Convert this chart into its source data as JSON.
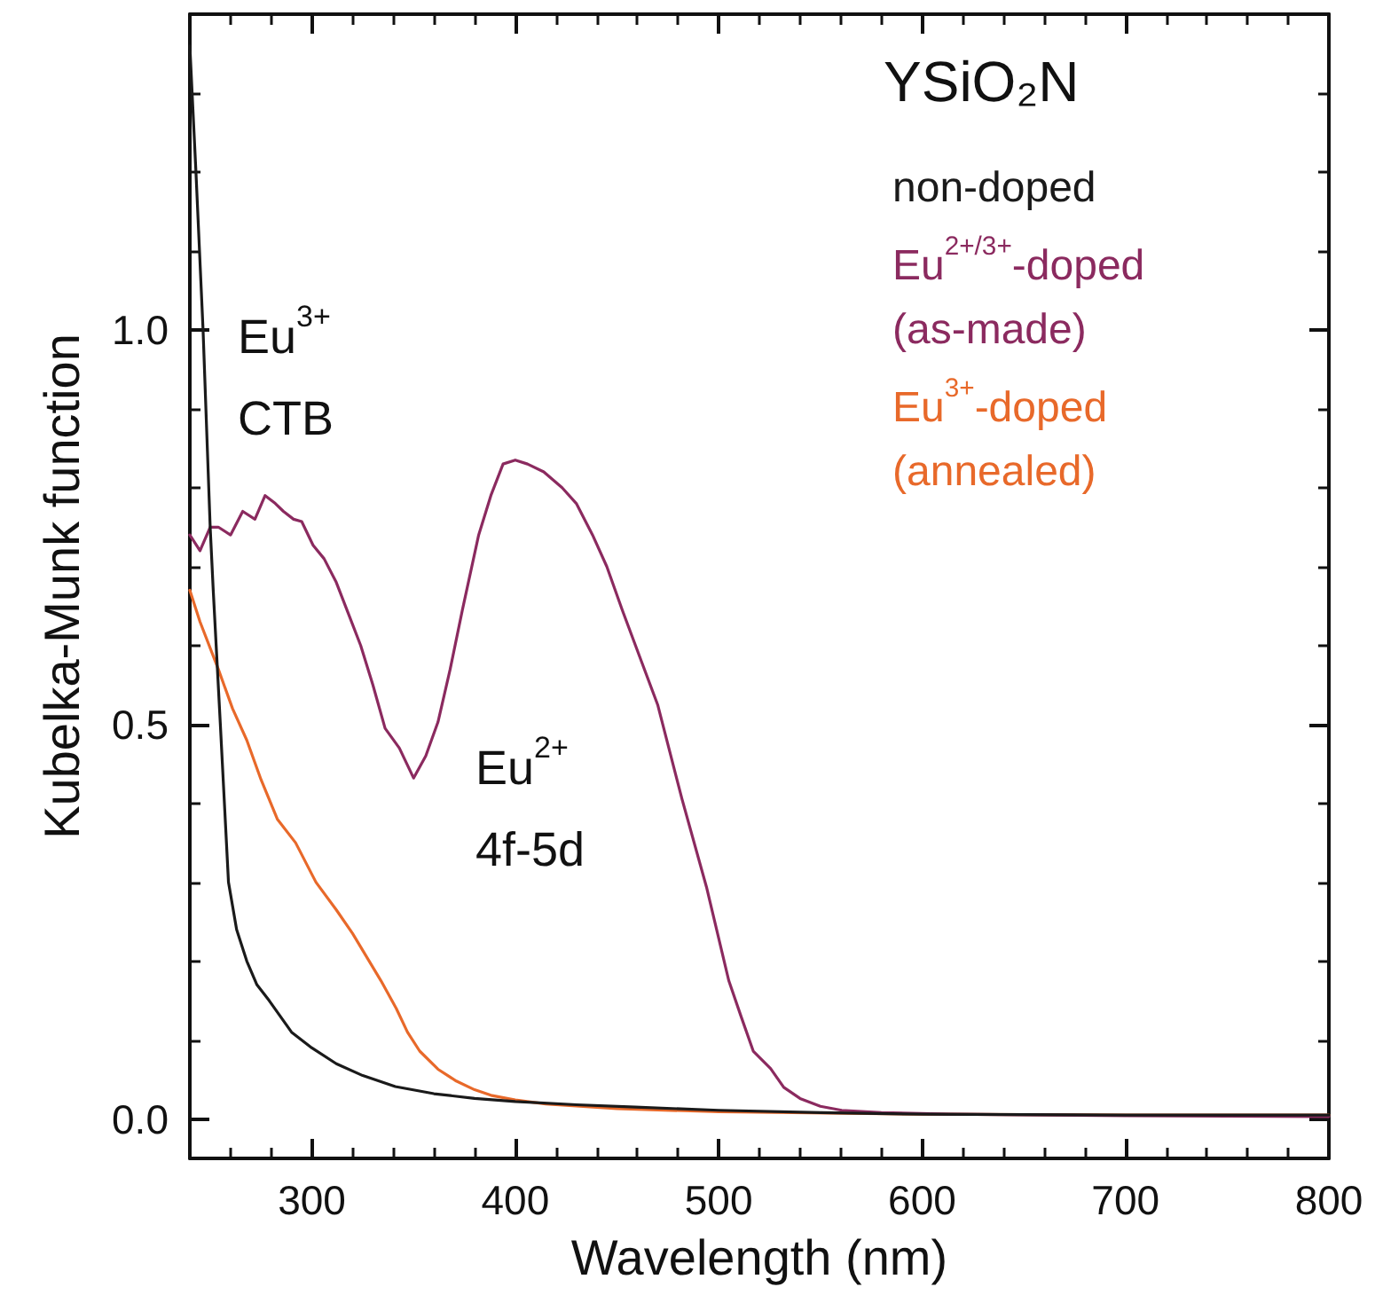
{
  "chart_data": {
    "type": "line",
    "xlabel": "Wavelength (nm)",
    "ylabel": "Kubelka-Munk function",
    "legend_title": "YSiO₂N",
    "legend": "top right",
    "marker": "none",
    "line_style": "solid",
    "grid": false,
    "xlim": [
      240,
      800
    ],
    "ylim": [
      -0.05,
      1.4
    ],
    "xticks": [
      {
        "value": 260,
        "label": null
      },
      {
        "value": 280,
        "label": null
      },
      300,
      {
        "value": 320,
        "label": null
      },
      {
        "value": 340,
        "label": null
      },
      {
        "value": 360,
        "label": null
      },
      {
        "value": 380,
        "label": null
      },
      400,
      {
        "value": 420,
        "label": null
      },
      {
        "value": 440,
        "label": null
      },
      {
        "value": 460,
        "label": null
      },
      {
        "value": 480,
        "label": null
      },
      500,
      {
        "value": 520,
        "label": null
      },
      {
        "value": 540,
        "label": null
      },
      {
        "value": 560,
        "label": null
      },
      {
        "value": 580,
        "label": null
      },
      600,
      {
        "value": 620,
        "label": null
      },
      {
        "value": 640,
        "label": null
      },
      {
        "value": 660,
        "label": null
      },
      {
        "value": 680,
        "label": null
      },
      700,
      {
        "value": 720,
        "label": null
      },
      {
        "value": 740,
        "label": null
      },
      {
        "value": 760,
        "label": null
      },
      {
        "value": 780,
        "label": null
      },
      800
    ],
    "yticks": [
      {
        "value": 0,
        "label": "0.0"
      },
      {
        "value": 0.1,
        "label": null
      },
      {
        "value": 0.2,
        "label": null
      },
      {
        "value": 0.3,
        "label": null
      },
      {
        "value": 0.4,
        "label": null
      },
      {
        "value": 0.5,
        "label": "0.5"
      },
      {
        "value": 0.6,
        "label": null
      },
      {
        "value": 0.7,
        "label": null
      },
      {
        "value": 0.8,
        "label": null
      },
      {
        "value": 0.9,
        "label": null
      },
      {
        "value": 1,
        "label": "1.0"
      },
      {
        "value": 1.1,
        "label": null
      },
      {
        "value": 1.2,
        "label": null
      },
      {
        "value": 1.3,
        "label": null
      }
    ],
    "series": [
      {
        "name": "non-doped",
        "color": "#1a1a1a",
        "x": [
          240,
          243,
          246.5,
          250,
          251.5,
          255,
          259,
          263,
          268,
          273,
          279,
          290,
          300,
          312,
          325,
          341,
          360,
          380,
          400,
          430,
          459,
          500,
          550,
          600,
          700,
          800
        ],
        "values": [
          1.36,
          1.2,
          1.0,
          0.75,
          0.67,
          0.5,
          0.3,
          0.24,
          0.2,
          0.17,
          0.15,
          0.11,
          0.09,
          0.07,
          0.055,
          0.041,
          0.032,
          0.026,
          0.022,
          0.018,
          0.015,
          0.011,
          0.008,
          0.006,
          0.005,
          0.005
        ]
      },
      {
        "name": "Eu$^{2+/3+}$-doped\n(as-made)",
        "color": "#8b2a5f",
        "x": [
          240,
          245,
          250,
          254,
          260,
          266,
          272,
          277,
          282,
          286,
          291,
          295,
          300.6,
          306,
          312,
          318,
          324,
          330,
          336,
          343,
          350,
          356,
          362,
          368,
          374,
          382,
          388,
          394,
          400,
          406,
          414,
          423,
          430,
          438,
          445,
          452.6,
          462,
          470,
          482,
          494,
          505,
          511,
          517,
          525.5,
          532,
          540,
          550,
          560.5,
          580,
          614,
          700,
          800
        ],
        "values": [
          0.74,
          0.72,
          0.75,
          0.75,
          0.74,
          0.77,
          0.76,
          0.79,
          0.78,
          0.77,
          0.76,
          0.757,
          0.727,
          0.71,
          0.68,
          0.64,
          0.6,
          0.55,
          0.495,
          0.47,
          0.432,
          0.46,
          0.503,
          0.57,
          0.645,
          0.74,
          0.79,
          0.83,
          0.835,
          0.83,
          0.82,
          0.8,
          0.78,
          0.74,
          0.7,
          0.645,
          0.58,
          0.525,
          0.405,
          0.294,
          0.175,
          0.13,
          0.086,
          0.064,
          0.04,
          0.026,
          0.016,
          0.011,
          0.008,
          0.006,
          0.004,
          0.003
        ]
      },
      {
        "name": "Eu$^{3+}$-doped\n(annealed)",
        "color": "#e8692a",
        "x": [
          240,
          245,
          254,
          261,
          268,
          275,
          283,
          292,
          302,
          312,
          320,
          327,
          334,
          341.5,
          347,
          353,
          362,
          371,
          380,
          388,
          400,
          415,
          450,
          500,
          600,
          700,
          800
        ],
        "values": [
          0.67,
          0.63,
          0.57,
          0.52,
          0.48,
          0.43,
          0.38,
          0.35,
          0.3,
          0.265,
          0.235,
          0.205,
          0.175,
          0.14,
          0.11,
          0.086,
          0.063,
          0.048,
          0.037,
          0.03,
          0.024,
          0.019,
          0.013,
          0.009,
          0.006,
          0.005,
          0.005
        ]
      }
    ],
    "annotations": [
      "Eu$^{3+}$",
      "CTB",
      "Eu$^{2+}$",
      "4f-5d"
    ]
  }
}
